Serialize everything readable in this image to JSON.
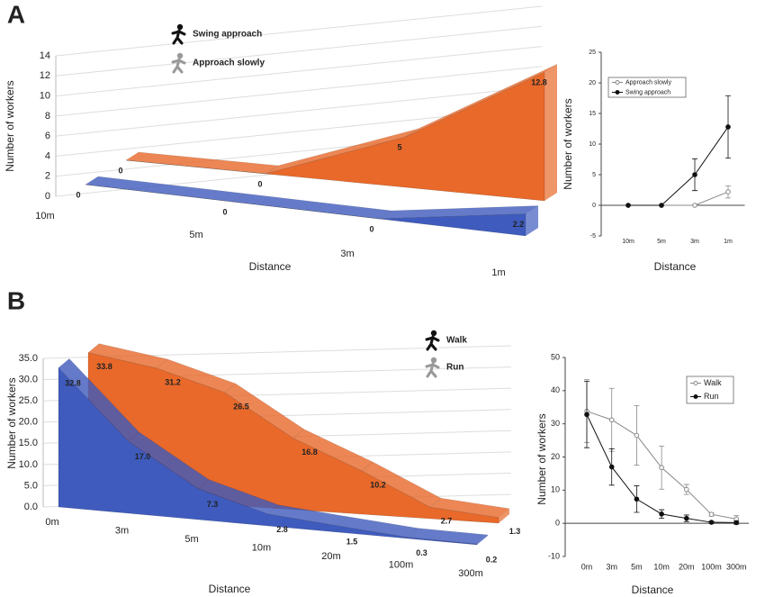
{
  "chart_data": [
    {
      "type": "area3d",
      "label": "A",
      "y_label": "Number of workers",
      "x_label": "Distance",
      "categories": [
        "10m",
        "5m",
        "3m",
        "1m"
      ],
      "series": [
        {
          "name": "Swing approach",
          "color": "#e8692a",
          "icon_color": "#111111",
          "values": [
            0,
            0,
            5,
            12.8
          ]
        },
        {
          "name": "Approach slowly",
          "color": "#3f5bbd",
          "icon_color": "#999999",
          "values": [
            0,
            0,
            0,
            2.2
          ]
        }
      ],
      "ylim": [
        0,
        14
      ],
      "yticks": [
        0,
        2,
        4,
        6,
        8,
        10,
        12,
        14
      ],
      "grid": true
    },
    {
      "type": "line",
      "y_label": "Number of workers",
      "x_label": "Distance",
      "categories": [
        "10m",
        "5m",
        "3m",
        "1m"
      ],
      "series": [
        {
          "name": "Approach slowly",
          "color": "#888888",
          "marker": "open",
          "values": [
            0,
            0,
            0,
            2.2
          ],
          "errors": [
            0,
            0,
            0,
            1
          ]
        },
        {
          "name": "Swing approach",
          "color": "#111111",
          "marker": "filled",
          "values": [
            0,
            0,
            5,
            12.8
          ],
          "errors": [
            0,
            0,
            2.6,
            5.1
          ]
        }
      ],
      "ylim": [
        -5,
        25
      ],
      "yticks": [
        -5,
        0,
        5,
        10,
        15,
        20,
        25
      ]
    },
    {
      "type": "area3d",
      "label": "B",
      "y_label": "Number of workers",
      "x_label": "Distance",
      "categories": [
        "0m",
        "3m",
        "5m",
        "10m",
        "20m",
        "100m",
        "300m"
      ],
      "series": [
        {
          "name": "Walk",
          "color": "#e8692a",
          "icon_color": "#111111",
          "values": [
            33.8,
            31.2,
            26.5,
            16.8,
            10.2,
            2.7,
            1.3
          ]
        },
        {
          "name": "Run",
          "color": "#3f5bbd",
          "icon_color": "#999999",
          "values": [
            32.8,
            17.0,
            7.3,
            2.8,
            1.5,
            0.3,
            0.2
          ],
          "value_labels": [
            "32.8",
            "17.0",
            "7.3",
            "2.8",
            "1.5",
            "0.3",
            "0.2"
          ]
        }
      ],
      "ylim": [
        0,
        35
      ],
      "yticks": [
        {
          "value": 0,
          "label": "0.0"
        },
        {
          "value": 5,
          "label": "5.0"
        },
        {
          "value": 10,
          "label": "10.0"
        },
        {
          "value": 15,
          "label": "15.0"
        },
        {
          "value": 20,
          "label": "20.0"
        },
        {
          "value": 25,
          "label": "25.0"
        },
        {
          "value": 30,
          "label": "30.0"
        },
        {
          "value": 35,
          "label": "35.0"
        }
      ],
      "grid": true
    },
    {
      "type": "line",
      "y_label": "Number of workers",
      "x_label": "Distance",
      "categories": [
        "0m",
        "3m",
        "5m",
        "10m",
        "20m",
        "100m",
        "300m"
      ],
      "series": [
        {
          "name": "Walk",
          "color": "#888888",
          "marker": "open",
          "values": [
            33.8,
            31.2,
            26.5,
            16.8,
            10.2,
            2.7,
            1.3
          ],
          "errors": [
            9.5,
            9.5,
            9,
            6.5,
            1.5,
            0.5,
            1
          ]
        },
        {
          "name": "Run",
          "color": "#111111",
          "marker": "filled",
          "values": [
            32.8,
            17.0,
            7.3,
            2.8,
            1.5,
            0.3,
            0.2
          ],
          "errors": [
            10,
            5.5,
            4,
            1.3,
            1,
            0.3,
            0.5
          ]
        }
      ],
      "ylim": [
        -10,
        50
      ],
      "yticks": [
        -10,
        0,
        10,
        20,
        30,
        40,
        50
      ]
    }
  ]
}
